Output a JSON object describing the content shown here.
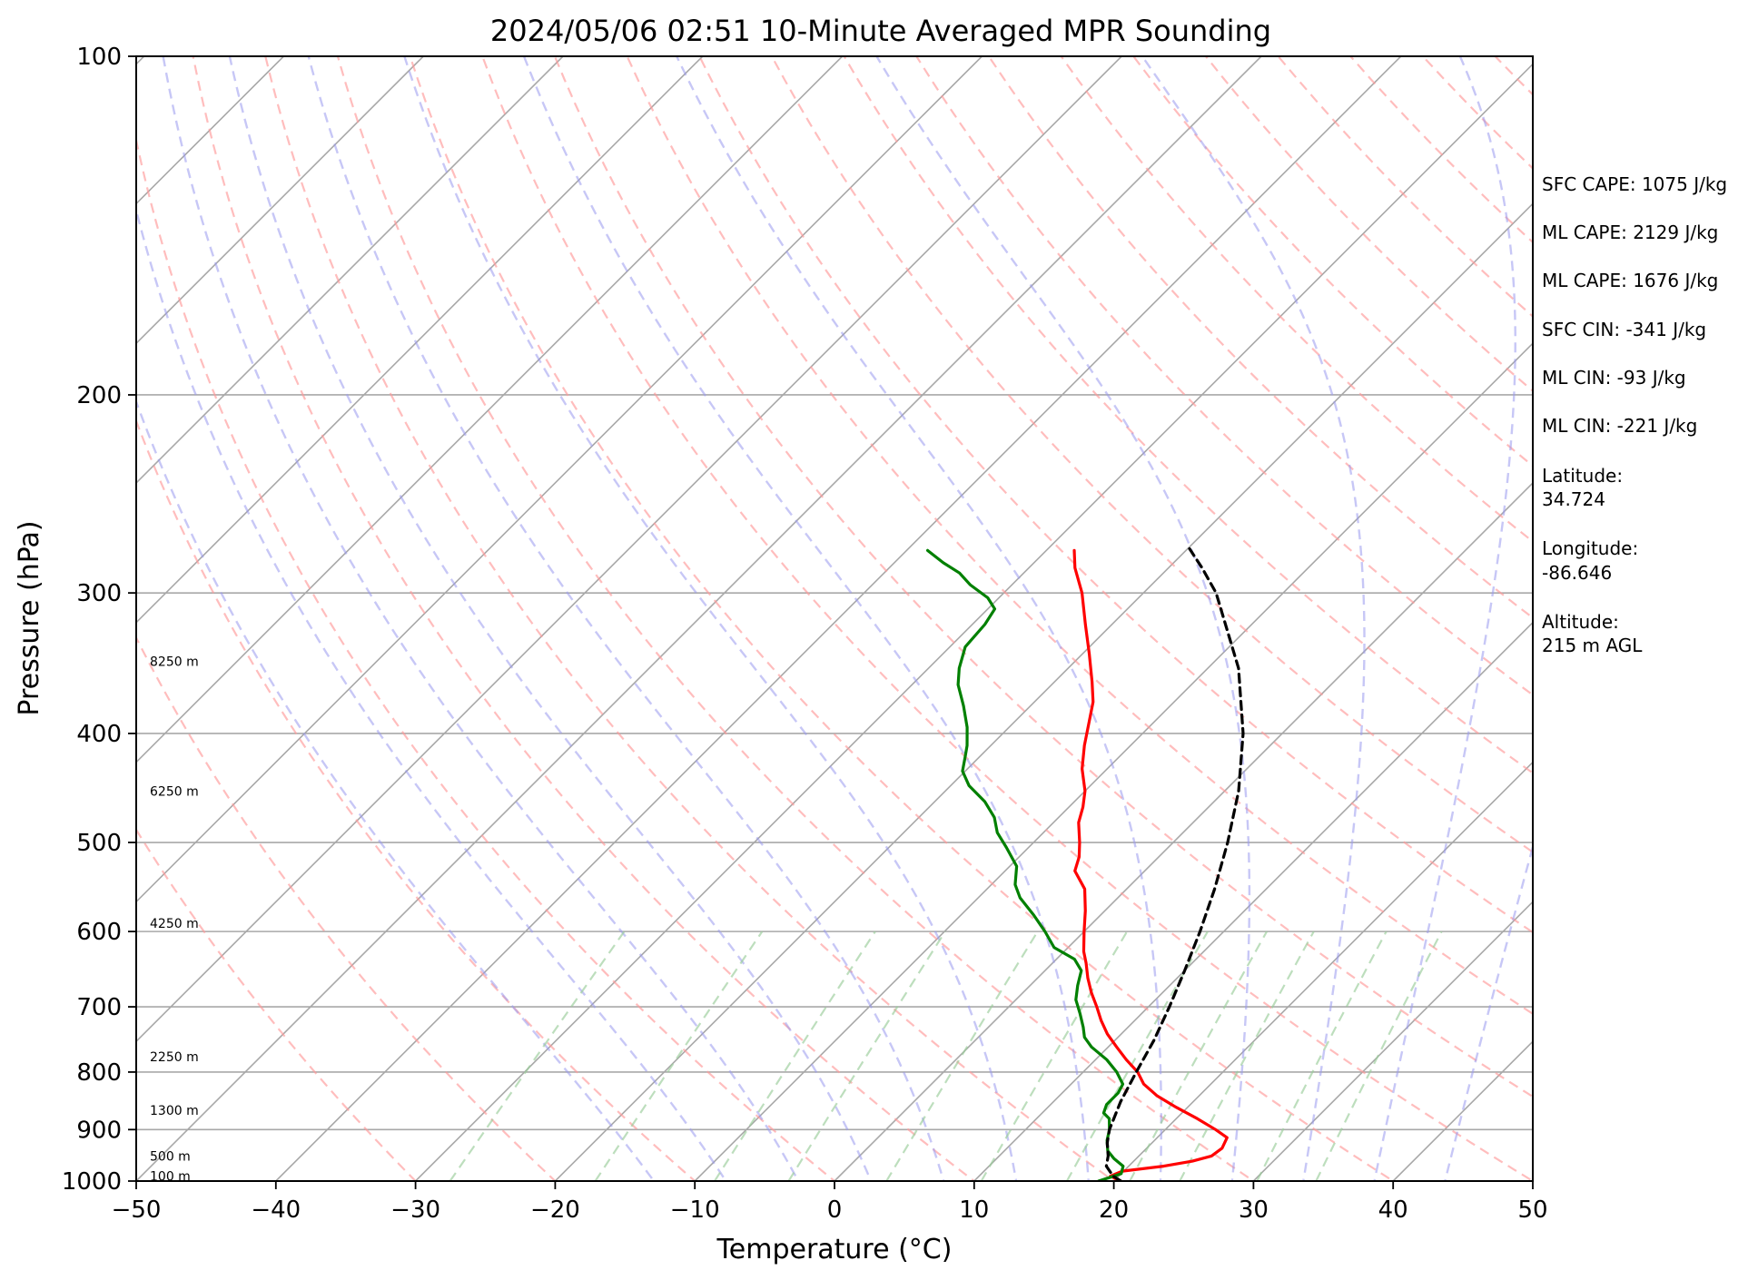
{
  "chart_data": {
    "type": "line",
    "title": "2024/05/06 02:51 10-Minute Averaged MPR Sounding",
    "xlabel": "Temperature (°C)",
    "ylabel": "Pressure (hPa)",
    "xlim": [
      -50,
      50
    ],
    "ylim": [
      1000,
      100
    ],
    "y_scale": "log",
    "skew": true,
    "grid": true,
    "x_ticks": [
      -50,
      -40,
      -30,
      -20,
      -10,
      0,
      10,
      20,
      30,
      40,
      50
    ],
    "x_tick_labels": [
      "−50",
      "−40",
      "−30",
      "−20",
      "−10",
      "0",
      "10",
      "20",
      "30",
      "40",
      "50"
    ],
    "y_ticks": [
      1000,
      900,
      800,
      700,
      600,
      500,
      400,
      300,
      200,
      100
    ],
    "y_tick_labels": [
      "1000",
      "900",
      "800",
      "700",
      "600",
      "500",
      "400",
      "300",
      "200",
      "100"
    ],
    "height_labels": [
      {
        "pressure": 990,
        "text": "100 m"
      },
      {
        "pressure": 950,
        "text": "500 m"
      },
      {
        "pressure": 865,
        "text": "1300 m"
      },
      {
        "pressure": 775,
        "text": "2250 m"
      },
      {
        "pressure": 590,
        "text": "4250 m"
      },
      {
        "pressure": 450,
        "text": "6250 m"
      },
      {
        "pressure": 345,
        "text": "8250 m"
      }
    ],
    "series": [
      {
        "color": "#ff0000",
        "style": "solid",
        "points": [
          {
            "p": 1000,
            "t": 20.5
          },
          {
            "p": 990,
            "t": 19.4
          },
          {
            "p": 980,
            "t": 19.9
          },
          {
            "p": 970,
            "t": 22.5
          },
          {
            "p": 960,
            "t": 24.2
          },
          {
            "p": 950,
            "t": 25.2
          },
          {
            "p": 935,
            "t": 25.4
          },
          {
            "p": 915,
            "t": 25.0
          },
          {
            "p": 900,
            "t": 23.6
          },
          {
            "p": 880,
            "t": 21.5
          },
          {
            "p": 860,
            "t": 19.2
          },
          {
            "p": 840,
            "t": 17.0
          },
          {
            "p": 820,
            "t": 15.2
          },
          {
            "p": 800,
            "t": 13.9
          },
          {
            "p": 780,
            "t": 12.2
          },
          {
            "p": 760,
            "t": 10.6
          },
          {
            "p": 740,
            "t": 9.0
          },
          {
            "p": 720,
            "t": 7.6
          },
          {
            "p": 700,
            "t": 6.3
          },
          {
            "p": 680,
            "t": 4.9
          },
          {
            "p": 660,
            "t": 3.6
          },
          {
            "p": 640,
            "t": 2.4
          },
          {
            "p": 625,
            "t": 1.4
          },
          {
            "p": 600,
            "t": 0.0
          },
          {
            "p": 575,
            "t": -1.4
          },
          {
            "p": 550,
            "t": -3.0
          },
          {
            "p": 530,
            "t": -5.0
          },
          {
            "p": 515,
            "t": -5.7
          },
          {
            "p": 500,
            "t": -6.7
          },
          {
            "p": 480,
            "t": -8.2
          },
          {
            "p": 465,
            "t": -9.0
          },
          {
            "p": 450,
            "t": -10.0
          },
          {
            "p": 430,
            "t": -11.8
          },
          {
            "p": 410,
            "t": -13.3
          },
          {
            "p": 390,
            "t": -14.7
          },
          {
            "p": 375,
            "t": -15.8
          },
          {
            "p": 360,
            "t": -17.3
          },
          {
            "p": 340,
            "t": -19.5
          },
          {
            "p": 320,
            "t": -21.9
          },
          {
            "p": 300,
            "t": -24.4
          },
          {
            "p": 285,
            "t": -26.7
          },
          {
            "p": 275,
            "t": -28.0
          }
        ]
      },
      {
        "color": "#008000",
        "style": "solid",
        "points": [
          {
            "p": 1000,
            "t": 18.9
          },
          {
            "p": 992,
            "t": 19.5
          },
          {
            "p": 985,
            "t": 20.0
          },
          {
            "p": 970,
            "t": 19.6
          },
          {
            "p": 955,
            "t": 18.4
          },
          {
            "p": 940,
            "t": 17.4
          },
          {
            "p": 920,
            "t": 16.6
          },
          {
            "p": 900,
            "t": 16.0
          },
          {
            "p": 880,
            "t": 15.2
          },
          {
            "p": 870,
            "t": 14.4
          },
          {
            "p": 855,
            "t": 14.0
          },
          {
            "p": 835,
            "t": 14.0
          },
          {
            "p": 820,
            "t": 13.7
          },
          {
            "p": 800,
            "t": 12.4
          },
          {
            "p": 780,
            "t": 10.8
          },
          {
            "p": 760,
            "t": 8.8
          },
          {
            "p": 745,
            "t": 7.6
          },
          {
            "p": 730,
            "t": 6.8
          },
          {
            "p": 710,
            "t": 5.6
          },
          {
            "p": 690,
            "t": 4.3
          },
          {
            "p": 670,
            "t": 3.4
          },
          {
            "p": 650,
            "t": 2.6
          },
          {
            "p": 635,
            "t": 1.3
          },
          {
            "p": 620,
            "t": -1.0
          },
          {
            "p": 600,
            "t": -2.8
          },
          {
            "p": 580,
            "t": -4.8
          },
          {
            "p": 560,
            "t": -7.0
          },
          {
            "p": 545,
            "t": -8.3
          },
          {
            "p": 525,
            "t": -9.5
          },
          {
            "p": 505,
            "t": -11.6
          },
          {
            "p": 490,
            "t": -13.3
          },
          {
            "p": 475,
            "t": -14.6
          },
          {
            "p": 460,
            "t": -16.4
          },
          {
            "p": 445,
            "t": -18.7
          },
          {
            "p": 432,
            "t": -20.2
          },
          {
            "p": 420,
            "t": -21.0
          },
          {
            "p": 410,
            "t": -21.7
          },
          {
            "p": 395,
            "t": -23.0
          },
          {
            "p": 378,
            "t": -24.8
          },
          {
            "p": 362,
            "t": -26.7
          },
          {
            "p": 350,
            "t": -27.8
          },
          {
            "p": 335,
            "t": -28.9
          },
          {
            "p": 320,
            "t": -29.1
          },
          {
            "p": 310,
            "t": -29.5
          },
          {
            "p": 303,
            "t": -30.8
          },
          {
            "p": 295,
            "t": -33.0
          },
          {
            "p": 288,
            "t": -34.6
          },
          {
            "p": 282,
            "t": -36.5
          },
          {
            "p": 275,
            "t": -38.5
          }
        ]
      },
      {
        "color": "#000000",
        "style": "dashed",
        "points": [
          {
            "p": 1000,
            "t": 20.5
          },
          {
            "p": 990,
            "t": 19.6
          },
          {
            "p": 970,
            "t": 18.4
          },
          {
            "p": 950,
            "t": 17.8
          },
          {
            "p": 925,
            "t": 16.8
          },
          {
            "p": 900,
            "t": 16.0
          },
          {
            "p": 850,
            "t": 14.8
          },
          {
            "p": 800,
            "t": 13.8
          },
          {
            "p": 750,
            "t": 12.8
          },
          {
            "p": 700,
            "t": 11.5
          },
          {
            "p": 650,
            "t": 10.0
          },
          {
            "p": 600,
            "t": 8.3
          },
          {
            "p": 550,
            "t": 6.3
          },
          {
            "p": 500,
            "t": 3.9
          },
          {
            "p": 450,
            "t": 1.0
          },
          {
            "p": 400,
            "t": -2.8
          },
          {
            "p": 350,
            "t": -7.8
          },
          {
            "p": 300,
            "t": -14.8
          },
          {
            "p": 285,
            "t": -17.6
          },
          {
            "p": 272,
            "t": -20.3
          }
        ]
      }
    ],
    "reference_lines": {
      "isotherm_color": "#a8a8a8",
      "dry_adiabat_color": "#ff9999",
      "moist_adiabat_color": "#9999ee",
      "mixing_ratio_color": "#99cc99"
    }
  },
  "stats": [
    {
      "text": "SFC CAPE: 1075 J/kg"
    },
    {
      "text": "ML CAPE: 2129 J/kg"
    },
    {
      "text": "ML CAPE: 1676 J/kg"
    },
    {
      "text": "SFC CIN: -341 J/kg"
    },
    {
      "text": "ML CIN: -93 J/kg"
    },
    {
      "text": "ML CIN: -221 J/kg"
    }
  ],
  "location": {
    "latitude_label": "Latitude:",
    "latitude_value": "34.724",
    "longitude_label": "Longitude:",
    "longitude_value": "-86.646",
    "altitude_label": "Altitude:",
    "altitude_value": "215 m AGL"
  }
}
